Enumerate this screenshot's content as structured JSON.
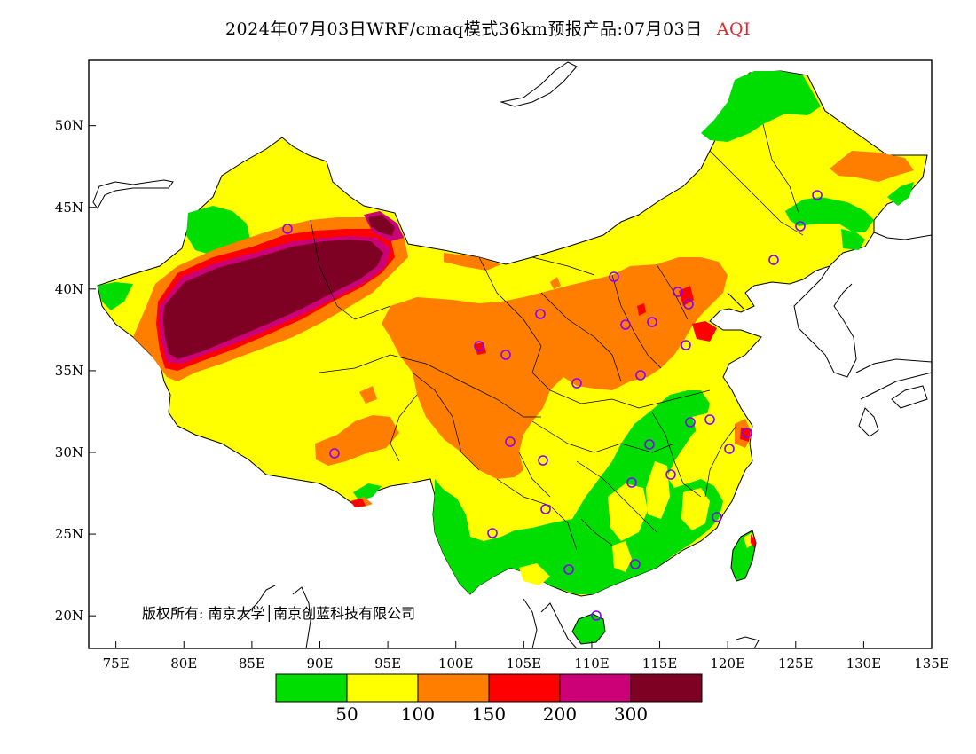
{
  "title": {
    "main": "2024年07月03日WRF/cmaq模式36km预报产品:07月03日",
    "variable": "AQI"
  },
  "axes": {
    "y_ticks": [
      "50N",
      "45N",
      "40N",
      "35N",
      "30N",
      "25N",
      "20N"
    ],
    "x_ticks": [
      "75E",
      "80E",
      "85E",
      "90E",
      "95E",
      "100E",
      "105E",
      "110E",
      "115E",
      "120E",
      "125E",
      "130E",
      "135E"
    ],
    "lon_range": [
      73,
      135
    ],
    "lat_range": [
      18,
      54
    ]
  },
  "copyright": "版权所有: 南京大学│南京创蓝科技有限公司",
  "legend": {
    "colors": [
      "#00dd00",
      "#ffff00",
      "#ff7e00",
      "#ff0000",
      "#cc0077",
      "#7e0023"
    ],
    "labels": [
      "50",
      "100",
      "150",
      "200",
      "300"
    ]
  },
  "colors": {
    "good": "#00dd00",
    "moderate": "#ffff00",
    "sensitive": "#ff7e00",
    "unhealthy": "#ff0000",
    "very_unhealthy": "#cc0077",
    "hazardous": "#7e0023",
    "station_marker": "#8800ff"
  }
}
